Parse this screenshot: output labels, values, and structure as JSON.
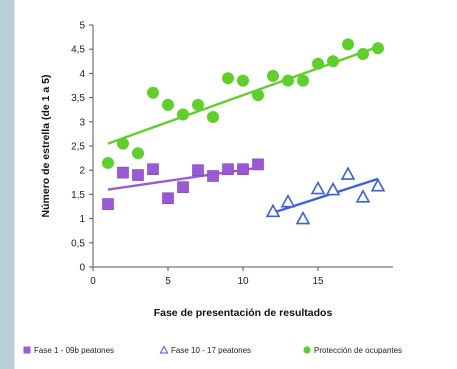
{
  "chart_data": {
    "type": "scatter",
    "title": "",
    "xlabel": "Fase de presentación de resultados",
    "ylabel": "Número de estrella (de 1 a 5)",
    "xlim": [
      0,
      20
    ],
    "ylim": [
      0,
      5
    ],
    "x_ticks": [
      0,
      5,
      10,
      15
    ],
    "y_ticks": [
      0,
      0.5,
      1,
      1.5,
      2,
      2.5,
      3,
      3.5,
      4,
      4.5,
      5
    ],
    "y_tick_labels": [
      "0",
      "0,5",
      "1",
      "1,5",
      "2",
      "2,5",
      "3",
      "3,5",
      "4",
      "4,5",
      "5"
    ],
    "grid": false,
    "legend_position": "bottom",
    "series": [
      {
        "name": "Fase 1 - 09b peatones",
        "marker": "square",
        "color": "#9b59d6",
        "points": [
          [
            1,
            1.3
          ],
          [
            2,
            1.95
          ],
          [
            3,
            1.9
          ],
          [
            4,
            2.02
          ],
          [
            5,
            1.42
          ],
          [
            6,
            1.65
          ],
          [
            7,
            2.0
          ],
          [
            8,
            1.88
          ],
          [
            9,
            2.02
          ],
          [
            10,
            2.02
          ],
          [
            11,
            2.12
          ]
        ],
        "trend": [
          [
            1,
            1.6
          ],
          [
            11,
            2.05
          ]
        ]
      },
      {
        "name": "Fase 10 - 17 peatones",
        "marker": "triangle",
        "color": "#3d5fe0",
        "points": [
          [
            12,
            1.15
          ],
          [
            13,
            1.35
          ],
          [
            14,
            1.0
          ],
          [
            15,
            1.62
          ],
          [
            16,
            1.6
          ],
          [
            17,
            1.92
          ],
          [
            18,
            1.45
          ],
          [
            19,
            1.68
          ]
        ],
        "trend": [
          [
            12,
            1.12
          ],
          [
            19,
            1.82
          ]
        ]
      },
      {
        "name": "Protección de ocupantes",
        "marker": "circle",
        "color": "#5fcf2a",
        "points": [
          [
            1,
            2.15
          ],
          [
            2,
            2.55
          ],
          [
            3,
            2.35
          ],
          [
            4,
            3.6
          ],
          [
            5,
            3.35
          ],
          [
            6,
            3.15
          ],
          [
            7,
            3.35
          ],
          [
            8,
            3.1
          ],
          [
            9,
            3.9
          ],
          [
            10,
            3.85
          ],
          [
            11,
            3.55
          ],
          [
            12,
            3.95
          ],
          [
            13,
            3.85
          ],
          [
            14,
            3.85
          ],
          [
            15,
            4.2
          ],
          [
            16,
            4.25
          ],
          [
            17,
            4.6
          ],
          [
            18,
            4.4
          ],
          [
            19,
            4.52
          ]
        ],
        "trend": [
          [
            1,
            2.55
          ],
          [
            19,
            4.55
          ]
        ]
      }
    ]
  }
}
